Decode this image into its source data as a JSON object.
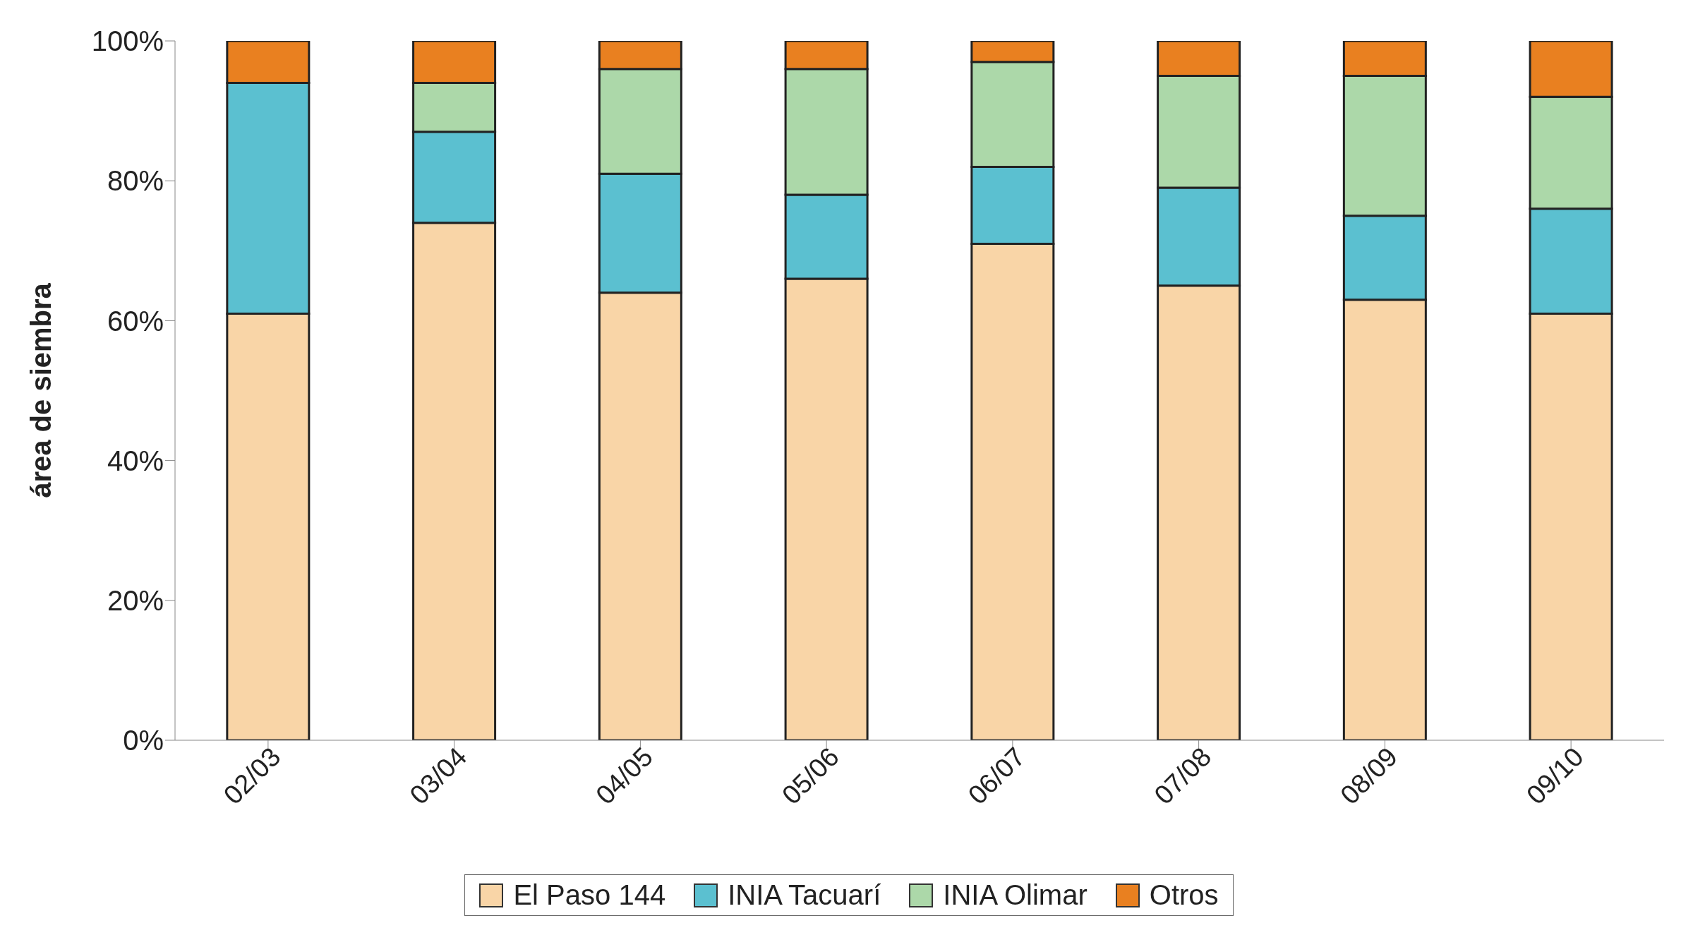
{
  "chart_data": {
    "type": "bar",
    "stacked": true,
    "ylabel": "área de siembra",
    "categories": [
      "02/03",
      "03/04",
      "04/05",
      "05/06",
      "06/07",
      "07/08",
      "08/09",
      "09/10"
    ],
    "series": [
      {
        "name": "El Paso 144",
        "color": "#f9d5a7",
        "values": [
          61,
          74,
          64,
          66,
          71,
          65,
          63,
          61
        ]
      },
      {
        "name": "INIA Tacuarí",
        "color": "#5bc0d0",
        "values": [
          33,
          13,
          17,
          12,
          11,
          14,
          12,
          15
        ]
      },
      {
        "name": "INIA Olimar",
        "color": "#acd8a9",
        "values": [
          0,
          7,
          15,
          18,
          15,
          16,
          20,
          16
        ]
      },
      {
        "name": "Otros",
        "color": "#e98020",
        "values": [
          6,
          6,
          4,
          4,
          3,
          5,
          5,
          8
        ]
      }
    ],
    "ylim": [
      0,
      100
    ],
    "yticks": [
      {
        "value": 0,
        "label": "0%"
      },
      {
        "value": 20,
        "label": "20%"
      },
      {
        "value": 40,
        "label": "40%"
      },
      {
        "value": 60,
        "label": "60%"
      },
      {
        "value": 80,
        "label": "80%"
      },
      {
        "value": 100,
        "label": "100%"
      }
    ],
    "grid": false,
    "legend": "bottom"
  }
}
